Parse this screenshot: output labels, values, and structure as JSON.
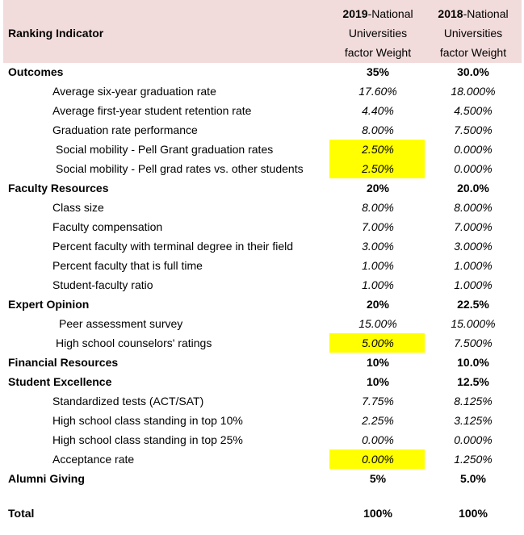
{
  "header": {
    "title": "Ranking Indicator",
    "col2019": {
      "year": "2019",
      "line1_rest": "-National",
      "line2": "Universities",
      "line3": "factor Weight"
    },
    "col2018": {
      "year": "2018",
      "line1_rest": "-National",
      "line2": "Universities",
      "line3": "factor Weight"
    }
  },
  "rows": [
    {
      "label": "Outcomes",
      "v2019": "35%",
      "v2018": "30.0%"
    },
    {
      "label": "Average six-year graduation rate",
      "v2019": "17.60%",
      "v2018": "18.000%"
    },
    {
      "label": "Average first-year student retention rate",
      "v2019": "4.40%",
      "v2018": "4.500%"
    },
    {
      "label": "Graduation rate performance",
      "v2019": "8.00%",
      "v2018": "7.500%"
    },
    {
      "label": "Social mobility - Pell Grant graduation rates",
      "v2019": "2.50%",
      "v2018": "0.000%"
    },
    {
      "label": "Social mobility - Pell grad rates vs. other students",
      "v2019": "2.50%",
      "v2018": "0.000%"
    },
    {
      "label": "Faculty Resources",
      "v2019": "20%",
      "v2018": "20.0%"
    },
    {
      "label": "Class size",
      "v2019": "8.00%",
      "v2018": "8.000%"
    },
    {
      "label": "Faculty compensation",
      "v2019": "7.00%",
      "v2018": "7.000%"
    },
    {
      "label": "Percent faculty with terminal degree in their field",
      "v2019": "3.00%",
      "v2018": "3.000%"
    },
    {
      "label": "Percent faculty that is full time",
      "v2019": "1.00%",
      "v2018": "1.000%"
    },
    {
      "label": "Student-faculty ratio",
      "v2019": "1.00%",
      "v2018": "1.000%"
    },
    {
      "label": "Expert Opinion",
      "v2019": "20%",
      "v2018": "22.5%"
    },
    {
      "label": "Peer assessment survey",
      "v2019": "15.00%",
      "v2018": "15.000%"
    },
    {
      "label": "High school counselors' ratings",
      "v2019": "5.00%",
      "v2018": "7.500%"
    },
    {
      "label": "Financial Resources",
      "v2019": "10%",
      "v2018": "10.0%"
    },
    {
      "label": "Student Excellence",
      "v2019": "10%",
      "v2018": "12.5%"
    },
    {
      "label": "Standardized tests (ACT/SAT)",
      "v2019": "7.75%",
      "v2018": "8.125%"
    },
    {
      "label": "High school class standing in top 10%",
      "v2019": "2.25%",
      "v2018": "3.125%"
    },
    {
      "label": "High school class standing in top 25%",
      "v2019": "0.00%",
      "v2018": "0.000%"
    },
    {
      "label": "Acceptance rate",
      "v2019": "0.00%",
      "v2018": "1.250%"
    },
    {
      "label": "Alumni Giving",
      "v2019": "5%",
      "v2018": "5.0%"
    },
    {
      "label": "Total",
      "v2019": "100%",
      "v2018": "100%"
    }
  ],
  "highlight_color": "#ffff00",
  "header_color": "#f2dcdb"
}
